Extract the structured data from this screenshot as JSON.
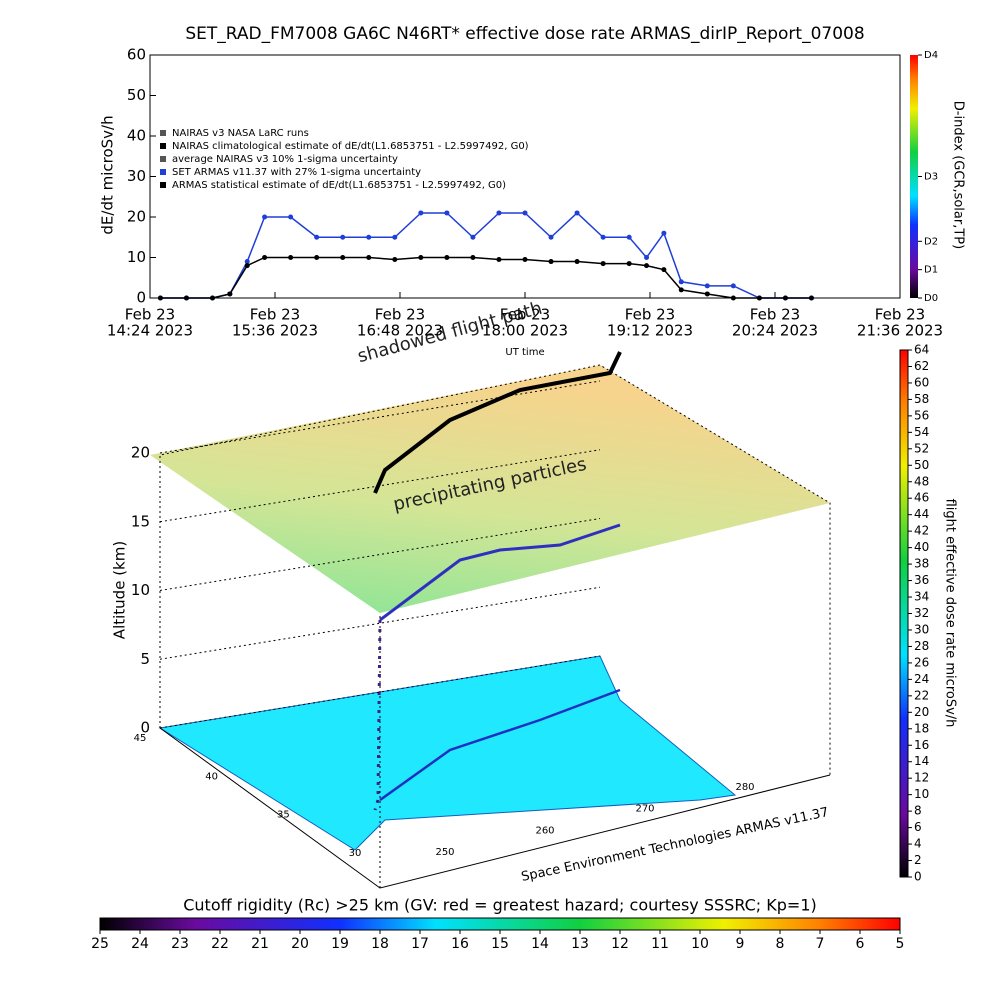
{
  "chart_data": [
    {
      "type": "line",
      "title": "SET_RAD_FM7008  GA6C N46RT* effective dose rate ARMAS_dirIP_Report_07008",
      "ylabel": "dE/dt microSv/h",
      "xlabel": "UT time",
      "y2label": "D-index (GCR,solar,TP)",
      "x": [
        "2023-02-23T14:30",
        "2023-02-23T14:45",
        "2023-02-23T15:00",
        "2023-02-23T15:10",
        "2023-02-23T15:20",
        "2023-02-23T15:30",
        "2023-02-23T15:45",
        "2023-02-23T16:00",
        "2023-02-23T16:15",
        "2023-02-23T16:30",
        "2023-02-23T16:45",
        "2023-02-23T17:00",
        "2023-02-23T17:15",
        "2023-02-23T17:30",
        "2023-02-23T17:45",
        "2023-02-23T18:00",
        "2023-02-23T18:15",
        "2023-02-23T18:30",
        "2023-02-23T18:45",
        "2023-02-23T19:00",
        "2023-02-23T19:10",
        "2023-02-23T19:20",
        "2023-02-23T19:30",
        "2023-02-23T19:45",
        "2023-02-23T20:00",
        "2023-02-23T20:15",
        "2023-02-23T20:30",
        "2023-02-23T20:45"
      ],
      "series": [
        {
          "name": "NAIRAS v3 NASA LaRC runs",
          "color": "#555555",
          "values": [
            null,
            null,
            null,
            null,
            null,
            null,
            null,
            null,
            null,
            null,
            null,
            null,
            null,
            null,
            null,
            null,
            null,
            null,
            null,
            null,
            null,
            null,
            null,
            null,
            null,
            null,
            null,
            null
          ]
        },
        {
          "name": "NAIRAS climatological estimate of dE/dt(L1.6853751 - L2.5997492, G0)",
          "color": "#000000",
          "values": [
            null,
            null,
            null,
            null,
            null,
            null,
            null,
            null,
            null,
            null,
            null,
            null,
            null,
            null,
            null,
            null,
            null,
            null,
            null,
            null,
            null,
            null,
            null,
            null,
            null,
            null,
            null,
            null
          ]
        },
        {
          "name": "average NAIRAS v3 10% 1-sigma uncertainty",
          "color": "#555555",
          "values": [
            null,
            null,
            null,
            null,
            null,
            null,
            null,
            null,
            null,
            null,
            null,
            null,
            null,
            null,
            null,
            null,
            null,
            null,
            null,
            null,
            null,
            null,
            null,
            null,
            null,
            null,
            null,
            null
          ]
        },
        {
          "name": "SET ARMAS v11.37 with 27% 1-sigma uncertainty",
          "color": "#1f3fd8",
          "values": [
            0,
            0,
            0,
            1,
            9,
            20,
            20,
            15,
            15,
            15,
            15,
            21,
            21,
            15,
            21,
            21,
            15,
            21,
            15,
            15,
            10,
            16,
            4,
            3,
            3,
            0,
            0,
            0
          ]
        },
        {
          "name": "ARMAS statistical estimate of dE/dt(L1.6853751 - L2.5997492, G0)",
          "color": "#000000",
          "values": [
            0,
            0,
            0,
            1,
            8,
            10,
            10,
            10,
            10,
            10,
            9.5,
            10,
            10,
            10,
            9.5,
            9.5,
            9,
            9,
            8.5,
            8.5,
            8,
            7,
            2,
            1,
            0,
            0,
            0,
            0
          ]
        }
      ],
      "xlim": [
        "2023-02-23T14:24",
        "2023-02-23T21:36"
      ],
      "xticks": [
        {
          "value": "2023-02-23T14:24",
          "label": [
            "Feb 23",
            "14:24 2023"
          ]
        },
        {
          "value": "2023-02-23T15:36",
          "label": [
            "Feb 23",
            "15:36 2023"
          ]
        },
        {
          "value": "2023-02-23T16:48",
          "label": [
            "Feb 23",
            "16:48 2023"
          ]
        },
        {
          "value": "2023-02-23T18:00",
          "label": [
            "Feb 23",
            "18:00 2023"
          ]
        },
        {
          "value": "2023-02-23T19:12",
          "label": [
            "Feb 23",
            "19:12 2023"
          ]
        },
        {
          "value": "2023-02-23T20:24",
          "label": [
            "Feb 23",
            "20:24 2023"
          ]
        },
        {
          "value": "2023-02-23T21:36",
          "label": [
            "Feb 23",
            "21:36 2023"
          ]
        }
      ],
      "ylim": [
        0,
        60
      ],
      "yticks": [
        0,
        10,
        20,
        30,
        40,
        50,
        60
      ],
      "y2lim": [
        0,
        60
      ],
      "y2ticks": [
        {
          "value": 0,
          "label": "D0"
        },
        {
          "value": 7,
          "label": "D1"
        },
        {
          "value": 14,
          "label": "D2"
        },
        {
          "value": 30,
          "label": "D3"
        },
        {
          "value": 60,
          "label": "D4"
        }
      ]
    },
    {
      "type": "surface3d",
      "annotations": [
        "shadowed flight path",
        "precipitating particles"
      ],
      "credit": "Space Environment Technologies ARMAS v11.37",
      "zlabel": "Altitude (km)",
      "zlim": [
        0,
        20
      ],
      "zticks": [
        0,
        5,
        10,
        15,
        20
      ],
      "latlim": [
        45,
        30
      ],
      "latticks": [
        45,
        40,
        35,
        30
      ],
      "lonlim": [
        250,
        280
      ],
      "lonticks": [
        250,
        260,
        270,
        280
      ]
    },
    {
      "type": "colorbar",
      "label": "flight effective dose rate microSv/h",
      "lim": [
        0,
        64
      ],
      "ticks": [
        0,
        2,
        4,
        6,
        8,
        10,
        12,
        14,
        16,
        18,
        20,
        22,
        24,
        26,
        28,
        30,
        32,
        34,
        36,
        38,
        40,
        42,
        44,
        46,
        48,
        50,
        52,
        54,
        56,
        58,
        60,
        62,
        64
      ]
    },
    {
      "type": "colorbar",
      "label": "Cutoff rigidity (Rc) >25 km (GV: red = greatest hazard; courtesy SSSRC; Kp=1)",
      "lim": [
        25,
        5
      ],
      "ticks": [
        25,
        24,
        23,
        22,
        21,
        20,
        19,
        18,
        17,
        16,
        15,
        14,
        13,
        12,
        11,
        10,
        9,
        8,
        7,
        6,
        5
      ]
    }
  ]
}
